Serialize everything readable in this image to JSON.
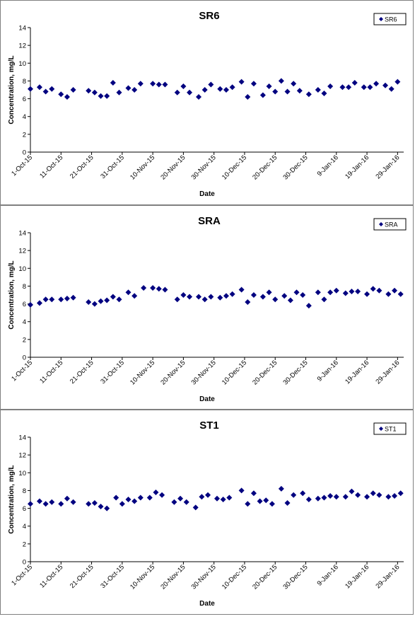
{
  "chart_data": [
    {
      "type": "scatter",
      "title": "SR6",
      "xlabel": "Date",
      "ylabel": "Concentration, mg/L",
      "legend": "top-right",
      "grid": false,
      "marker_color": "#000080",
      "ylim": [
        0,
        14
      ],
      "yticks": [
        "0",
        "2",
        "4",
        "6",
        "8",
        "10",
        "12",
        "14"
      ],
      "xlim": [
        "2015-10-01",
        "2016-01-31"
      ],
      "xticks": [
        "1-Oct-15",
        "11-Oct-15",
        "21-Oct-15",
        "31-Oct-15",
        "10-Nov-15",
        "20-Nov-15",
        "30-Nov-15",
        "10-Dec-15",
        "20-Dec-15",
        "30-Dec-15",
        "9-Jan-16",
        "19-Jan-16",
        "29-Jan-16"
      ],
      "series": [
        {
          "name": "SR6",
          "x": [
            "2015-10-01",
            "2015-10-04",
            "2015-10-06",
            "2015-10-08",
            "2015-10-11",
            "2015-10-13",
            "2015-10-15",
            "2015-10-20",
            "2015-10-22",
            "2015-10-24",
            "2015-10-26",
            "2015-10-28",
            "2015-10-30",
            "2015-11-02",
            "2015-11-04",
            "2015-11-06",
            "2015-11-10",
            "2015-11-12",
            "2015-11-14",
            "2015-11-18",
            "2015-11-20",
            "2015-11-22",
            "2015-11-25",
            "2015-11-27",
            "2015-11-29",
            "2015-12-02",
            "2015-12-04",
            "2015-12-06",
            "2015-12-09",
            "2015-12-11",
            "2015-12-13",
            "2015-12-16",
            "2015-12-18",
            "2015-12-20",
            "2015-12-22",
            "2015-12-24",
            "2015-12-26",
            "2015-12-28",
            "2015-12-31",
            "2016-01-03",
            "2016-01-05",
            "2016-01-07",
            "2016-01-11",
            "2016-01-13",
            "2016-01-15",
            "2016-01-18",
            "2016-01-20",
            "2016-01-22",
            "2016-01-25",
            "2016-01-27",
            "2016-01-29"
          ],
          "y": [
            7.1,
            7.3,
            6.8,
            7.1,
            6.5,
            6.2,
            7.0,
            6.9,
            6.7,
            6.3,
            6.3,
            7.8,
            6.7,
            7.2,
            7.0,
            7.7,
            7.7,
            7.6,
            7.6,
            6.7,
            7.4,
            6.7,
            6.2,
            7.0,
            7.6,
            7.1,
            7.0,
            7.3,
            7.9,
            6.2,
            7.7,
            6.4,
            7.4,
            6.8,
            8.0,
            6.8,
            7.7,
            6.9,
            6.5,
            7.0,
            6.6,
            7.4,
            7.3,
            7.3,
            7.8,
            7.3,
            7.3,
            7.7,
            7.5,
            7.1,
            7.9
          ]
        }
      ]
    },
    {
      "type": "scatter",
      "title": "SRA",
      "xlabel": "Date",
      "ylabel": "Concentration, mg/L",
      "legend": "top-right",
      "grid": false,
      "marker_color": "#000080",
      "ylim": [
        0,
        14
      ],
      "yticks": [
        "0",
        "2",
        "4",
        "6",
        "8",
        "10",
        "12",
        "14"
      ],
      "xlim": [
        "2015-10-01",
        "2016-01-31"
      ],
      "xticks": [
        "1-Oct-15",
        "11-Oct-15",
        "21-Oct-15",
        "31-Oct-15",
        "10-Nov-15",
        "20-Nov-15",
        "30-Nov-15",
        "10-Dec-15",
        "20-Dec-15",
        "30-Dec-15",
        "9-Jan-16",
        "19-Jan-16",
        "29-Jan-16"
      ],
      "series": [
        {
          "name": "SRA",
          "x": [
            "2015-10-01",
            "2015-10-04",
            "2015-10-06",
            "2015-10-08",
            "2015-10-11",
            "2015-10-13",
            "2015-10-15",
            "2015-10-20",
            "2015-10-22",
            "2015-10-24",
            "2015-10-26",
            "2015-10-28",
            "2015-10-30",
            "2015-11-02",
            "2015-11-04",
            "2015-11-07",
            "2015-11-10",
            "2015-11-12",
            "2015-11-14",
            "2015-11-18",
            "2015-11-20",
            "2015-11-22",
            "2015-11-25",
            "2015-11-27",
            "2015-11-29",
            "2015-12-02",
            "2015-12-04",
            "2015-12-06",
            "2015-12-09",
            "2015-12-11",
            "2015-12-13",
            "2015-12-16",
            "2015-12-18",
            "2015-12-20",
            "2015-12-23",
            "2015-12-25",
            "2015-12-27",
            "2015-12-29",
            "2015-12-31",
            "2016-01-03",
            "2016-01-05",
            "2016-01-07",
            "2016-01-09",
            "2016-01-12",
            "2016-01-14",
            "2016-01-16",
            "2016-01-19",
            "2016-01-21",
            "2016-01-23",
            "2016-01-26",
            "2016-01-28",
            "2016-01-30"
          ],
          "y": [
            5.9,
            6.1,
            6.5,
            6.5,
            6.5,
            6.6,
            6.7,
            6.2,
            6.0,
            6.3,
            6.4,
            6.8,
            6.5,
            7.3,
            6.9,
            7.8,
            7.8,
            7.7,
            7.6,
            6.5,
            7.0,
            6.8,
            6.8,
            6.5,
            6.8,
            6.7,
            6.9,
            7.1,
            7.6,
            6.2,
            7.0,
            6.8,
            7.3,
            6.5,
            6.9,
            6.4,
            7.3,
            7.0,
            5.8,
            7.3,
            6.5,
            7.3,
            7.5,
            7.2,
            7.4,
            7.4,
            7.1,
            7.7,
            7.5,
            7.1,
            7.5,
            7.1
          ]
        }
      ]
    },
    {
      "type": "scatter",
      "title": "ST1",
      "xlabel": "Date",
      "ylabel": "Concentration, mg/L",
      "legend": "top-right",
      "grid": false,
      "marker_color": "#000080",
      "ylim": [
        0,
        14
      ],
      "yticks": [
        "0",
        "2",
        "4",
        "6",
        "8",
        "10",
        "12",
        "14"
      ],
      "xlim": [
        "2015-10-01",
        "2016-01-31"
      ],
      "xticks": [
        "1-Oct-15",
        "11-Oct-15",
        "21-Oct-15",
        "31-Oct-15",
        "10-Nov-15",
        "20-Nov-15",
        "30-Nov-15",
        "10-Dec-15",
        "20-Dec-15",
        "30-Dec-15",
        "9-Jan-16",
        "19-Jan-16",
        "29-Jan-16"
      ],
      "series": [
        {
          "name": "ST1",
          "x": [
            "2015-10-01",
            "2015-10-04",
            "2015-10-06",
            "2015-10-08",
            "2015-10-11",
            "2015-10-13",
            "2015-10-15",
            "2015-10-20",
            "2015-10-22",
            "2015-10-24",
            "2015-10-26",
            "2015-10-29",
            "2015-10-31",
            "2015-11-02",
            "2015-11-04",
            "2015-11-06",
            "2015-11-09",
            "2015-11-11",
            "2015-11-13",
            "2015-11-17",
            "2015-11-19",
            "2015-11-21",
            "2015-11-24",
            "2015-11-26",
            "2015-11-28",
            "2015-12-01",
            "2015-12-03",
            "2015-12-05",
            "2015-12-09",
            "2015-12-11",
            "2015-12-13",
            "2015-12-15",
            "2015-12-17",
            "2015-12-19",
            "2015-12-22",
            "2015-12-24",
            "2015-12-26",
            "2015-12-29",
            "2015-12-31",
            "2016-01-03",
            "2016-01-05",
            "2016-01-07",
            "2016-01-09",
            "2016-01-12",
            "2016-01-14",
            "2016-01-16",
            "2016-01-19",
            "2016-01-21",
            "2016-01-23",
            "2016-01-26",
            "2016-01-28",
            "2016-01-30"
          ],
          "y": [
            6.5,
            6.8,
            6.5,
            6.7,
            6.5,
            7.1,
            6.7,
            6.5,
            6.6,
            6.2,
            6.0,
            7.2,
            6.5,
            7.0,
            6.8,
            7.2,
            7.2,
            7.8,
            7.5,
            6.7,
            7.1,
            6.7,
            6.1,
            7.3,
            7.5,
            7.1,
            7.0,
            7.2,
            8.0,
            6.5,
            7.7,
            6.8,
            6.9,
            6.5,
            8.2,
            6.6,
            7.5,
            7.7,
            7.0,
            7.1,
            7.2,
            7.4,
            7.3,
            7.3,
            7.9,
            7.5,
            7.3,
            7.7,
            7.5,
            7.3,
            7.4,
            7.7
          ]
        }
      ]
    }
  ]
}
